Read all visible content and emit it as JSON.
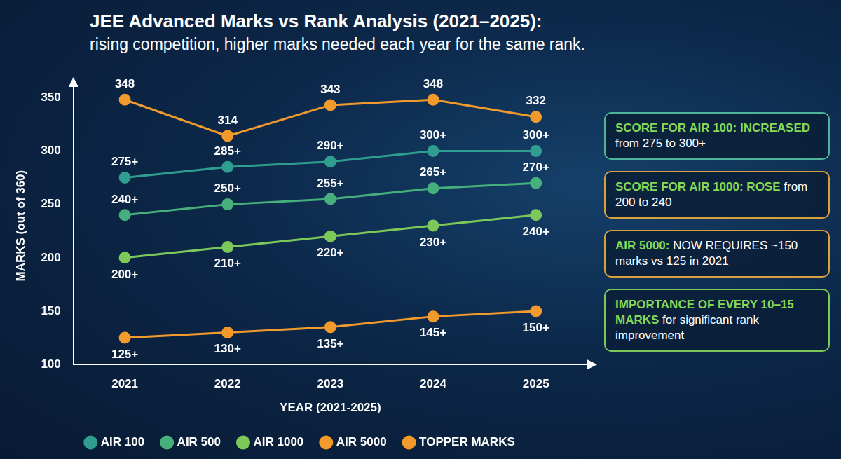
{
  "chart_data": {
    "type": "line",
    "title": "JEE Advanced Marks vs Rank Analysis (2021–2025):",
    "subtitle": "rising competition, higher marks needed each year for the same rank.",
    "x_label": "YEAR (2021-2025)",
    "y_label": "MARKS (out of 360)",
    "categories": [
      "2021",
      "2022",
      "2023",
      "2024",
      "2025"
    ],
    "ylim": [
      100,
      360
    ],
    "yticks": [
      100,
      150,
      200,
      250,
      300,
      350
    ],
    "grid": false,
    "legend": "bottom",
    "data_labels": true,
    "series": [
      {
        "name": "AIR 100",
        "color": "#2f9e8f",
        "marker": "circle",
        "values": [
          275,
          285,
          290,
          300,
          300
        ],
        "value_labels": [
          "275+",
          "285+",
          "290+",
          "300+",
          "300+"
        ]
      },
      {
        "name": "AIR 500",
        "color": "#45b07c",
        "marker": "circle",
        "values": [
          240,
          250,
          255,
          265,
          270
        ],
        "value_labels": [
          "240+",
          "250+",
          "255+",
          "265+",
          "270+"
        ]
      },
      {
        "name": "AIR 1000",
        "color": "#7cc95a",
        "marker": "circle",
        "values": [
          200,
          210,
          220,
          230,
          240
        ],
        "value_labels": [
          "200+",
          "210+",
          "220+",
          "230+",
          "240+"
        ]
      },
      {
        "name": "AIR 5000",
        "color": "#f39a2d",
        "marker": "circle",
        "values": [
          125,
          130,
          135,
          145,
          150
        ],
        "value_labels": [
          "125+",
          "130+",
          "135+",
          "145+",
          "150+"
        ]
      },
      {
        "name": "TOPPER MARKS",
        "color": "#f39a2d",
        "marker": "circle",
        "values": [
          348,
          314,
          343,
          348,
          332
        ]
      }
    ],
    "annotations": [
      {
        "bold": "SCORE FOR AIR 100: INCREASED",
        "text": "from 275 to 300+"
      },
      {
        "bold": "SCORE FOR AIR 1000: ROSE",
        "text": "from 200 to 240"
      },
      {
        "bold": "AIR 5000:",
        "text": "NOW REQUIRES ~150 marks vs 125 in 2021"
      },
      {
        "bold": "IMPORTANCE OF EVERY 10–15 MARKS",
        "text": "for significant rank improvement"
      }
    ]
  }
}
